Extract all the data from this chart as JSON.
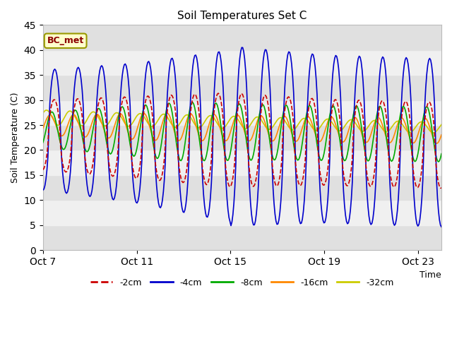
{
  "title": "Soil Temperatures Set C",
  "xlabel": "Time",
  "ylabel": "Soil Temperature (C)",
  "ylim": [
    0,
    45
  ],
  "xlim_days": [
    0,
    17
  ],
  "x_ticks_days": [
    0,
    4,
    8,
    12,
    16
  ],
  "x_tick_labels": [
    "Oct 7",
    "Oct 11",
    "Oct 15",
    "Oct 19",
    "Oct 23"
  ],
  "y_ticks": [
    0,
    5,
    10,
    15,
    20,
    25,
    30,
    35,
    40,
    45
  ],
  "colors": {
    "-2cm": "#cc0000",
    "-4cm": "#0000cc",
    "-8cm": "#00aa00",
    "-16cm": "#ff8800",
    "-32cm": "#cccc00"
  },
  "line_styles": {
    "-2cm": "--",
    "-4cm": "-",
    "-8cm": "-",
    "-16cm": "-",
    "-32cm": "-"
  },
  "line_widths": {
    "-2cm": 1.2,
    "-4cm": 1.2,
    "-8cm": 1.2,
    "-16cm": 1.2,
    "-32cm": 1.2
  },
  "annotation_text": "BC_met",
  "bg_bands": [
    [
      0,
      5,
      "#e0e0e0"
    ],
    [
      5,
      10,
      "#f0f0f0"
    ],
    [
      10,
      15,
      "#e0e0e0"
    ],
    [
      15,
      20,
      "#f0f0f0"
    ],
    [
      20,
      25,
      "#e0e0e0"
    ],
    [
      25,
      30,
      "#f0f0f0"
    ],
    [
      30,
      35,
      "#e0e0e0"
    ],
    [
      35,
      40,
      "#f0f0f0"
    ],
    [
      40,
      45,
      "#e0e0e0"
    ]
  ]
}
